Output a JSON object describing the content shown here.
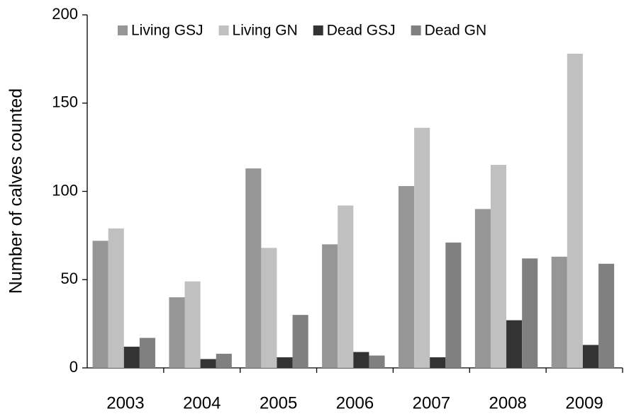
{
  "chart_data": {
    "type": "bar",
    "y_label": "Number of calves counted",
    "categories": [
      "2003",
      "2004",
      "2005",
      "2006",
      "2007",
      "2008",
      "2009"
    ],
    "series": [
      {
        "name": "Living GSJ",
        "color": "#969696",
        "values": [
          72,
          40,
          113,
          70,
          103,
          90,
          63
        ]
      },
      {
        "name": "Living GN",
        "color": "#c0c0c0",
        "values": [
          79,
          49,
          68,
          92,
          136,
          115,
          178
        ]
      },
      {
        "name": "Dead GSJ",
        "color": "#333333",
        "values": [
          12,
          5,
          6,
          9,
          6,
          27,
          13
        ]
      },
      {
        "name": "Dead GN",
        "color": "#808080",
        "values": [
          17,
          8,
          30,
          7,
          71,
          62,
          59
        ]
      }
    ],
    "ylim": [
      0,
      200
    ],
    "yticks": [
      0,
      50,
      100,
      150,
      200
    ],
    "grid": false,
    "legend": "top"
  }
}
